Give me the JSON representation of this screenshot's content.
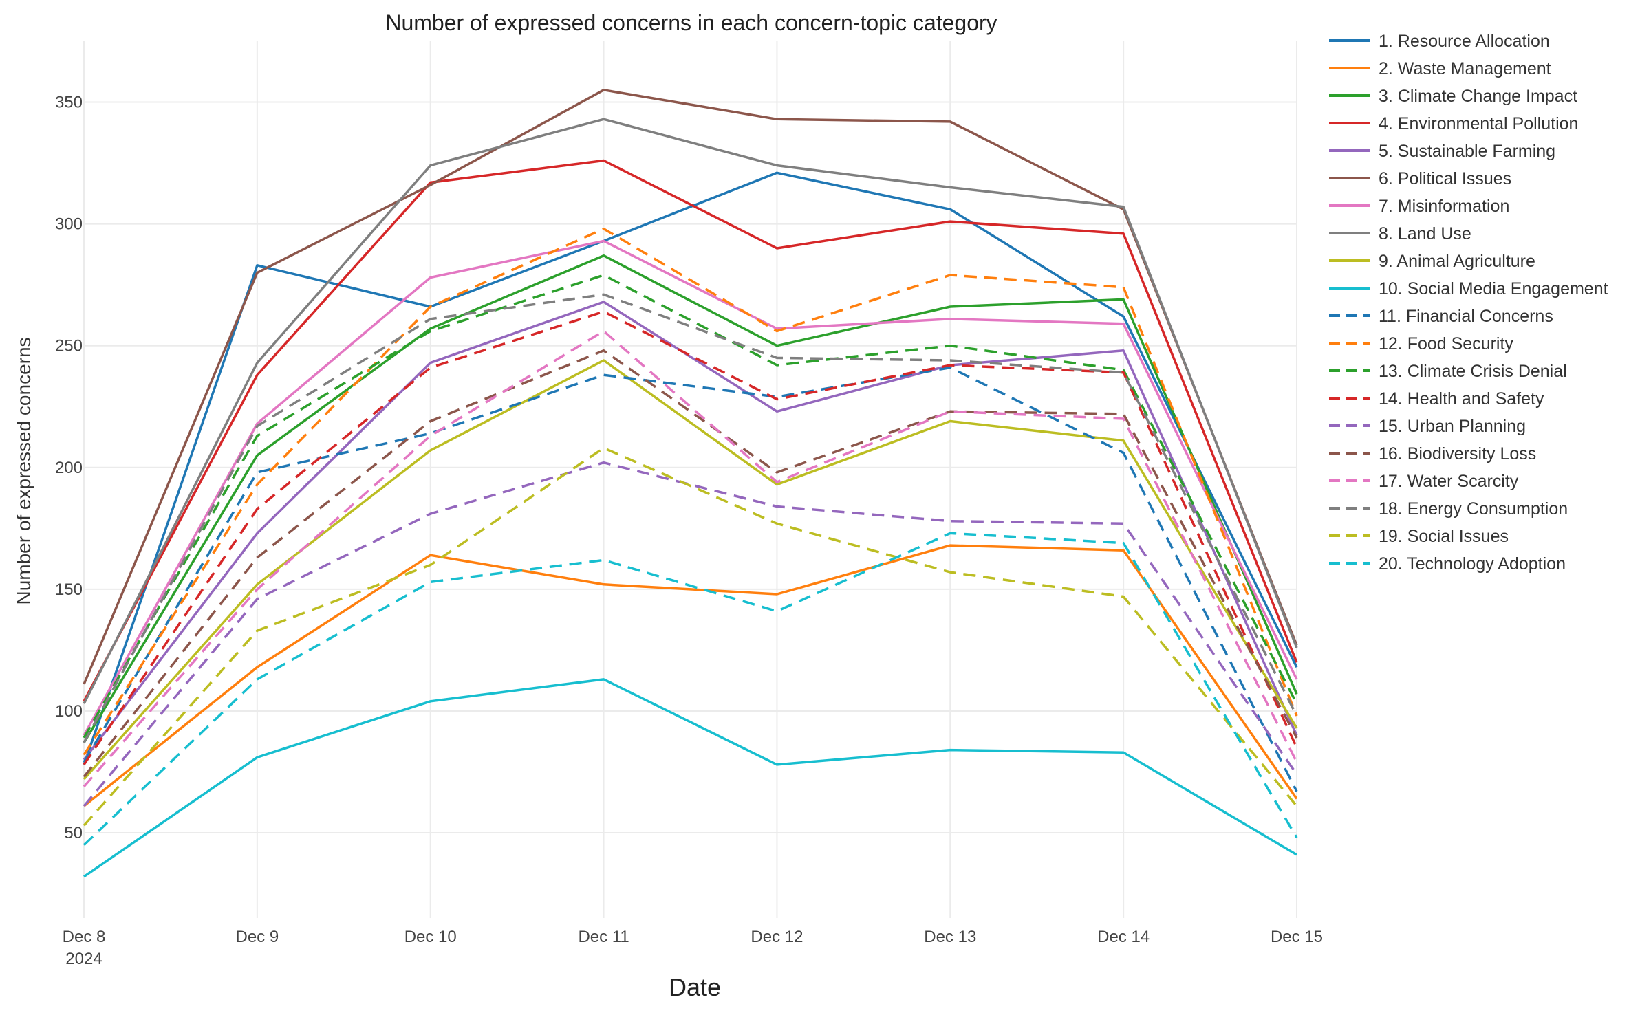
{
  "chart_data": {
    "type": "line",
    "title": "Number of expressed concerns in each concern-topic category",
    "xlabel": "Date",
    "ylabel": "Number of expressed concerns",
    "categories": [
      "Dec 8",
      "Dec 9",
      "Dec 10",
      "Dec 11",
      "Dec 12",
      "Dec 13",
      "Dec 14",
      "Dec 15"
    ],
    "x_year_label": "2024",
    "yticks": [
      50,
      100,
      150,
      200,
      250,
      300,
      350
    ],
    "ylim": [
      15,
      375
    ],
    "grid": true,
    "legend_position": "right",
    "series": [
      {
        "name": "1. Resource Allocation",
        "color": "#1f77b4",
        "dash": "solid",
        "values": [
          78,
          283,
          266,
          293,
          321,
          306,
          262,
          118
        ]
      },
      {
        "name": "2. Waste Management",
        "color": "#ff7f0e",
        "dash": "solid",
        "values": [
          61,
          118,
          164,
          152,
          148,
          168,
          166,
          64
        ]
      },
      {
        "name": "3. Climate Change Impact",
        "color": "#2ca02c",
        "dash": "solid",
        "values": [
          87,
          205,
          257,
          287,
          250,
          266,
          269,
          107
        ]
      },
      {
        "name": "4. Environmental Pollution",
        "color": "#d62728",
        "dash": "solid",
        "values": [
          104,
          238,
          317,
          326,
          290,
          301,
          296,
          120
        ]
      },
      {
        "name": "5. Sustainable Farming",
        "color": "#9467bd",
        "dash": "solid",
        "values": [
          80,
          173,
          243,
          268,
          223,
          242,
          248,
          90
        ]
      },
      {
        "name": "6. Political Issues",
        "color": "#8c564b",
        "dash": "solid",
        "values": [
          111,
          280,
          316,
          355,
          343,
          342,
          306,
          127
        ]
      },
      {
        "name": "7. Misinformation",
        "color": "#e377c2",
        "dash": "solid",
        "values": [
          90,
          218,
          278,
          293,
          257,
          261,
          259,
          113
        ]
      },
      {
        "name": "8. Land Use",
        "color": "#7f7f7f",
        "dash": "solid",
        "values": [
          103,
          243,
          324,
          343,
          324,
          315,
          307,
          126
        ]
      },
      {
        "name": "9. Animal Agriculture",
        "color": "#bcbd22",
        "dash": "solid",
        "values": [
          72,
          152,
          207,
          244,
          193,
          219,
          211,
          93
        ]
      },
      {
        "name": "10. Social Media Engagement",
        "color": "#17becf",
        "dash": "solid",
        "values": [
          32,
          81,
          104,
          113,
          78,
          84,
          83,
          41
        ]
      },
      {
        "name": "11. Financial Concerns",
        "color": "#1f77b4",
        "dash": "dash",
        "values": [
          79,
          198,
          214,
          238,
          229,
          241,
          206,
          67
        ]
      },
      {
        "name": "12. Food Security",
        "color": "#ff7f0e",
        "dash": "dash",
        "values": [
          82,
          193,
          266,
          298,
          256,
          279,
          274,
          98
        ]
      },
      {
        "name": "13. Climate Crisis Denial",
        "color": "#2ca02c",
        "dash": "dash",
        "values": [
          89,
          213,
          256,
          279,
          242,
          250,
          240,
          103
        ]
      },
      {
        "name": "14. Health and Safety",
        "color": "#d62728",
        "dash": "dash",
        "values": [
          78,
          183,
          241,
          264,
          228,
          242,
          239,
          85
        ]
      },
      {
        "name": "15. Urban Planning",
        "color": "#9467bd",
        "dash": "dash",
        "values": [
          61,
          146,
          181,
          202,
          184,
          178,
          177,
          74
        ]
      },
      {
        "name": "16. Biodiversity Loss",
        "color": "#8c564b",
        "dash": "dash",
        "values": [
          73,
          163,
          219,
          248,
          198,
          223,
          222,
          89
        ]
      },
      {
        "name": "17. Water Scarcity",
        "color": "#e377c2",
        "dash": "dash",
        "values": [
          69,
          150,
          213,
          256,
          194,
          223,
          220,
          79
        ]
      },
      {
        "name": "18. Energy Consumption",
        "color": "#7f7f7f",
        "dash": "dash",
        "values": [
          87,
          217,
          261,
          271,
          245,
          244,
          239,
          98
        ]
      },
      {
        "name": "19. Social Issues",
        "color": "#bcbd22",
        "dash": "dash",
        "values": [
          53,
          133,
          160,
          208,
          177,
          157,
          147,
          61
        ]
      },
      {
        "name": "20. Technology Adoption",
        "color": "#17becf",
        "dash": "dash",
        "values": [
          45,
          113,
          153,
          162,
          141,
          173,
          169,
          48
        ]
      }
    ]
  }
}
